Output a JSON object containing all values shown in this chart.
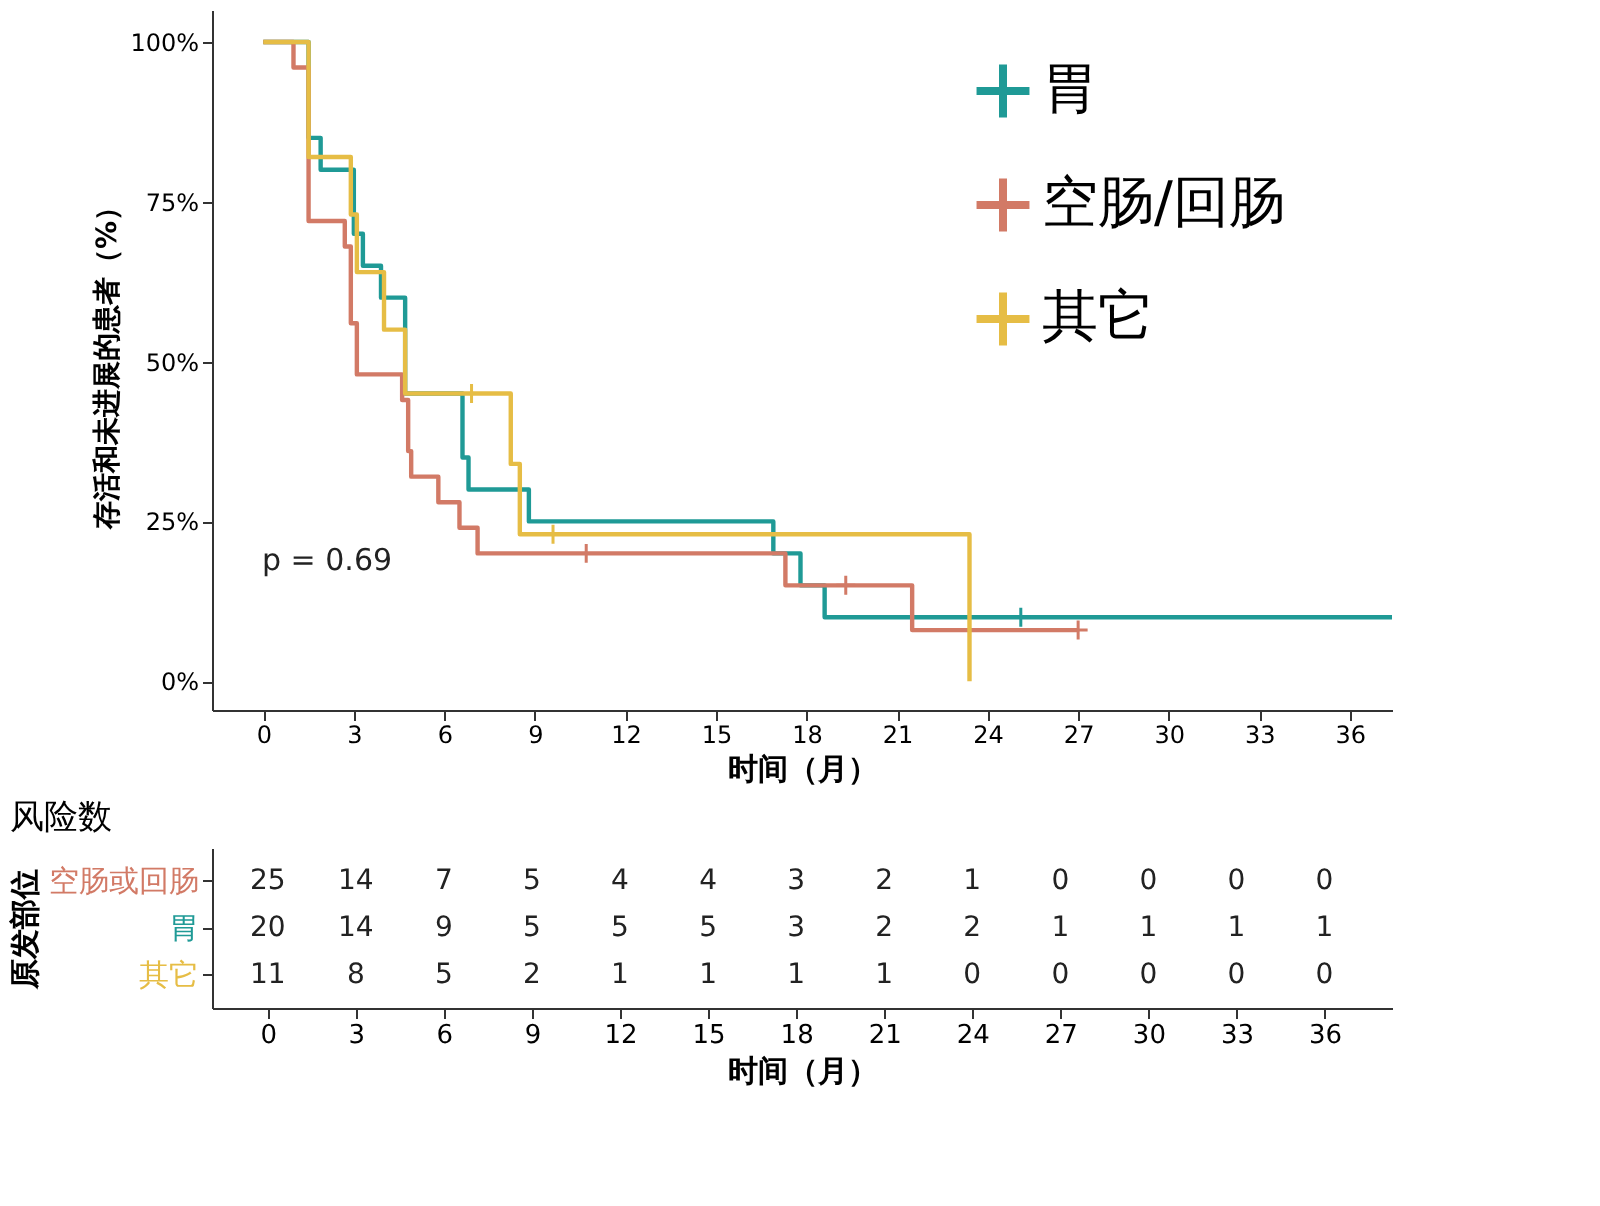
{
  "chart_data": [
    {
      "type": "step",
      "xlabel": "时间（月）",
      "ylabel": "存活和未进展的患者（%）",
      "xlim": [
        -1.7,
        37.4
      ],
      "xticks": [
        0,
        3,
        6,
        9,
        12,
        15,
        18,
        21,
        24,
        27,
        30,
        33,
        36
      ],
      "ylim": [
        -4.5,
        105
      ],
      "yticks": [
        {
          "value": 0,
          "label": "0%"
        },
        {
          "value": 25,
          "label": "25%"
        },
        {
          "value": 50,
          "label": "50%"
        },
        {
          "value": 75,
          "label": "75%"
        },
        {
          "value": 100,
          "label": "100%"
        }
      ],
      "grid": false,
      "legend": "top right",
      "annotations": [
        "p = 0.69"
      ],
      "series": [
        {
          "name": "胃",
          "color": "#1f9a96",
          "x": [
            0,
            1.5,
            1.5,
            1.9,
            3.0,
            3.3,
            3.9,
            4.7,
            6.6,
            6.8,
            8.8,
            16.9,
            17.8,
            18.6,
            37.4
          ],
          "values": [
            100,
            90,
            85,
            80,
            70,
            65,
            60,
            45,
            35,
            30,
            25,
            20,
            15,
            10,
            10
          ]
        },
        {
          "name": "空肠/回肠",
          "color": "#d27a66",
          "x": [
            0,
            1.0,
            1.5,
            2.7,
            2.9,
            3.1,
            4.6,
            4.8,
            4.9,
            5.8,
            6.5,
            7.1,
            17.3,
            21.5,
            27
          ],
          "values": [
            100,
            96,
            72,
            68,
            56,
            48,
            44,
            36,
            32,
            28,
            24,
            20,
            15,
            8,
            8
          ]
        },
        {
          "name": "其它",
          "color": "#e6bd45",
          "x": [
            0,
            1.5,
            1.5,
            2.9,
            3.1,
            4.0,
            4.7,
            8.2,
            8.5,
            23.4
          ],
          "values": [
            100,
            91,
            82,
            73,
            64,
            55,
            45,
            34,
            23,
            0
          ]
        },
        {
          "type": "scatter",
          "marker": "cross",
          "color": "#1f9a96",
          "x": [
            25.1
          ],
          "values": [
            10
          ]
        },
        {
          "type": "scatter",
          "marker": "cross",
          "color": "#d27a66",
          "x": [
            10.7,
            19.3,
            27
          ],
          "values": [
            20,
            15,
            8
          ]
        },
        {
          "type": "scatter",
          "marker": "cross",
          "color": "#e6bd45",
          "x": [
            6.9,
            9.6
          ],
          "values": [
            45,
            23
          ]
        }
      ]
    },
    {
      "type": "heatmap",
      "title": "风险数",
      "xlabel": "时间（月）",
      "ylabel": "原发部位",
      "data_labels": true,
      "x": [
        0,
        3,
        6,
        9,
        12,
        15,
        18,
        21,
        24,
        27,
        30,
        33,
        36
      ],
      "xlim": [
        -1.9,
        38.3
      ],
      "xticks": [
        0,
        3,
        6,
        9,
        12,
        15,
        18,
        21,
        24,
        27,
        30,
        33,
        36
      ],
      "y_categories": [
        "空肠或回肠",
        "胃",
        "其它"
      ],
      "colors": [
        "#d27a66",
        "#1f9a96",
        "#e6bd45"
      ],
      "cells": [
        [
          25,
          14,
          7,
          5,
          4,
          4,
          3,
          2,
          1,
          0,
          0,
          0,
          0
        ],
        [
          20,
          14,
          9,
          5,
          5,
          5,
          3,
          2,
          2,
          1,
          1,
          1,
          1
        ],
        [
          11,
          8,
          5,
          2,
          1,
          1,
          1,
          1,
          0,
          0,
          0,
          0,
          0
        ]
      ]
    }
  ]
}
